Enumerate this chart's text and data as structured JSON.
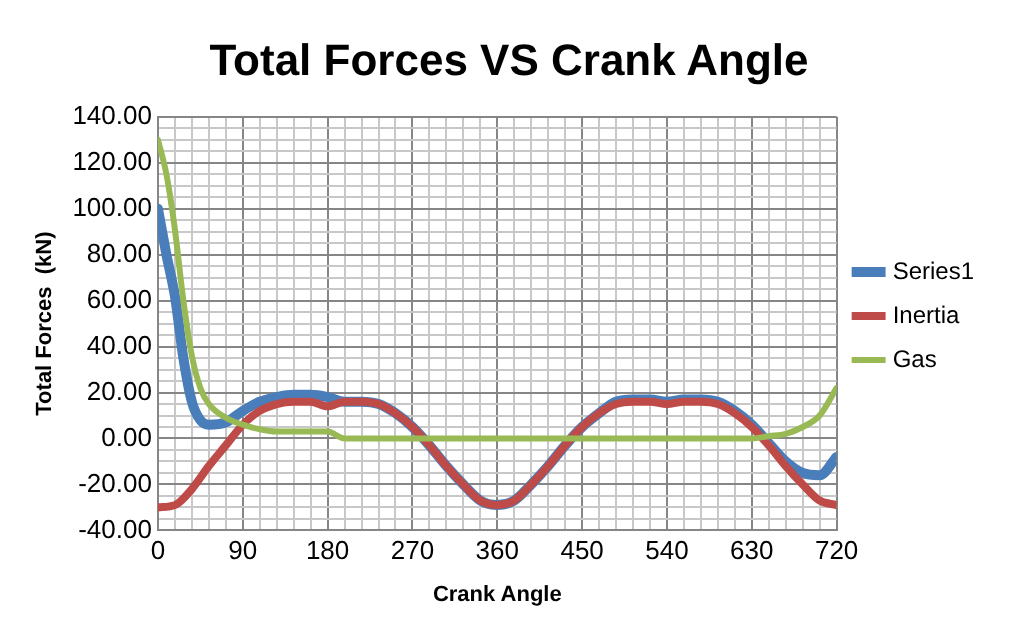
{
  "chart_data": {
    "type": "line",
    "title": "Total Forces VS Crank Angle",
    "xlabel": "Crank Angle",
    "ylabel": "Total Forces  (kN)",
    "xlim": [
      0,
      720
    ],
    "xticks": [
      0,
      {
        "value": 18,
        "label": null
      },
      {
        "value": 36,
        "label": null
      },
      {
        "value": 54,
        "label": null
      },
      {
        "value": 72,
        "label": null
      },
      90,
      {
        "value": 108,
        "label": null
      },
      {
        "value": 126,
        "label": null
      },
      {
        "value": 144,
        "label": null
      },
      {
        "value": 162,
        "label": null
      },
      180,
      {
        "value": 198,
        "label": null
      },
      {
        "value": 216,
        "label": null
      },
      {
        "value": 234,
        "label": null
      },
      {
        "value": 252,
        "label": null
      },
      270,
      {
        "value": 288,
        "label": null
      },
      {
        "value": 306,
        "label": null
      },
      {
        "value": 324,
        "label": null
      },
      {
        "value": 342,
        "label": null
      },
      360,
      {
        "value": 378,
        "label": null
      },
      {
        "value": 396,
        "label": null
      },
      {
        "value": 414,
        "label": null
      },
      {
        "value": 432,
        "label": null
      },
      450,
      {
        "value": 468,
        "label": null
      },
      {
        "value": 486,
        "label": null
      },
      {
        "value": 504,
        "label": null
      },
      {
        "value": 522,
        "label": null
      },
      540,
      {
        "value": 558,
        "label": null
      },
      {
        "value": 576,
        "label": null
      },
      {
        "value": 594,
        "label": null
      },
      {
        "value": 612,
        "label": null
      },
      630,
      {
        "value": 648,
        "label": null
      },
      {
        "value": 666,
        "label": null
      },
      {
        "value": 684,
        "label": null
      },
      {
        "value": 702,
        "label": null
      },
      720
    ],
    "ylim": [
      -40,
      140
    ],
    "yticks": [
      {
        "value": -40,
        "label": "-40.00"
      },
      {
        "value": -35,
        "label": null
      },
      {
        "value": -30,
        "label": null
      },
      {
        "value": -25,
        "label": null
      },
      {
        "value": -20,
        "label": "-20.00"
      },
      {
        "value": -15,
        "label": null
      },
      {
        "value": -10,
        "label": null
      },
      {
        "value": -5,
        "label": null
      },
      {
        "value": 0,
        "label": "0.00"
      },
      {
        "value": 5,
        "label": null
      },
      {
        "value": 10,
        "label": null
      },
      {
        "value": 15,
        "label": null
      },
      {
        "value": 20,
        "label": "20.00"
      },
      {
        "value": 25,
        "label": null
      },
      {
        "value": 30,
        "label": null
      },
      {
        "value": 35,
        "label": null
      },
      {
        "value": 40,
        "label": "40.00"
      },
      {
        "value": 45,
        "label": null
      },
      {
        "value": 50,
        "label": null
      },
      {
        "value": 55,
        "label": null
      },
      {
        "value": 60,
        "label": "60.00"
      },
      {
        "value": 65,
        "label": null
      },
      {
        "value": 70,
        "label": null
      },
      {
        "value": 75,
        "label": null
      },
      {
        "value": 80,
        "label": "80.00"
      },
      {
        "value": 85,
        "label": null
      },
      {
        "value": 90,
        "label": null
      },
      {
        "value": 95,
        "label": null
      },
      {
        "value": 100,
        "label": "100.00"
      },
      {
        "value": 105,
        "label": null
      },
      {
        "value": 110,
        "label": null
      },
      {
        "value": 115,
        "label": null
      },
      {
        "value": 120,
        "label": "120.00"
      },
      {
        "value": 125,
        "label": null
      },
      {
        "value": 130,
        "label": null
      },
      {
        "value": 135,
        "label": null
      },
      {
        "value": 140,
        "label": "140.00"
      }
    ],
    "grid": true,
    "legend": "right",
    "marker": "none",
    "line_style": "solid",
    "series": [
      {
        "name": "Series1",
        "color": "#4a7ebb",
        "x": [
          0,
          9,
          18,
          27,
          36,
          45,
          54,
          72,
          90,
          108,
          126,
          144,
          162,
          180,
          198,
          216,
          234,
          252,
          270,
          288,
          306,
          324,
          342,
          360,
          378,
          396,
          414,
          432,
          450,
          468,
          486,
          504,
          522,
          540,
          558,
          576,
          594,
          612,
          630,
          648,
          666,
          684,
          702,
          720
        ],
        "values": [
          100,
          80,
          62,
          35,
          16,
          8,
          6,
          7,
          12,
          16,
          18,
          19,
          19,
          18,
          16,
          16,
          15,
          11,
          5,
          -3,
          -12,
          -20,
          -27,
          -29,
          -27,
          -20,
          -12,
          -3,
          5,
          11,
          16,
          17,
          17,
          16,
          17,
          17,
          16,
          12,
          6,
          -2,
          -10,
          -15,
          -16,
          -8
        ]
      },
      {
        "name": "Inertia",
        "color": "#be4b48",
        "x": [
          0,
          18,
          36,
          54,
          72,
          90,
          108,
          126,
          144,
          162,
          180,
          198,
          216,
          234,
          252,
          270,
          288,
          306,
          324,
          342,
          360,
          378,
          396,
          414,
          432,
          450,
          468,
          486,
          504,
          522,
          540,
          558,
          576,
          594,
          612,
          630,
          648,
          666,
          684,
          702,
          720
        ],
        "values": [
          -30,
          -29,
          -22,
          -12,
          -3,
          6,
          12,
          15,
          16,
          16,
          14,
          16,
          16,
          15,
          11,
          5,
          -3,
          -12,
          -20,
          -27,
          -29,
          -27,
          -20,
          -12,
          -3,
          5,
          11,
          15,
          16,
          16,
          15,
          16,
          16,
          15,
          11,
          5,
          -3,
          -12,
          -20,
          -27,
          -29
        ]
      },
      {
        "name": "Gas",
        "color": "#98b954",
        "x": [
          0,
          9,
          18,
          27,
          36,
          45,
          54,
          72,
          90,
          108,
          126,
          180,
          198,
          630,
          648,
          666,
          684,
          702,
          720
        ],
        "values": [
          130,
          115,
          91,
          60,
          36,
          22,
          15,
          9,
          6,
          4,
          3,
          3,
          0,
          0,
          1,
          2,
          5,
          10,
          22
        ]
      }
    ]
  }
}
